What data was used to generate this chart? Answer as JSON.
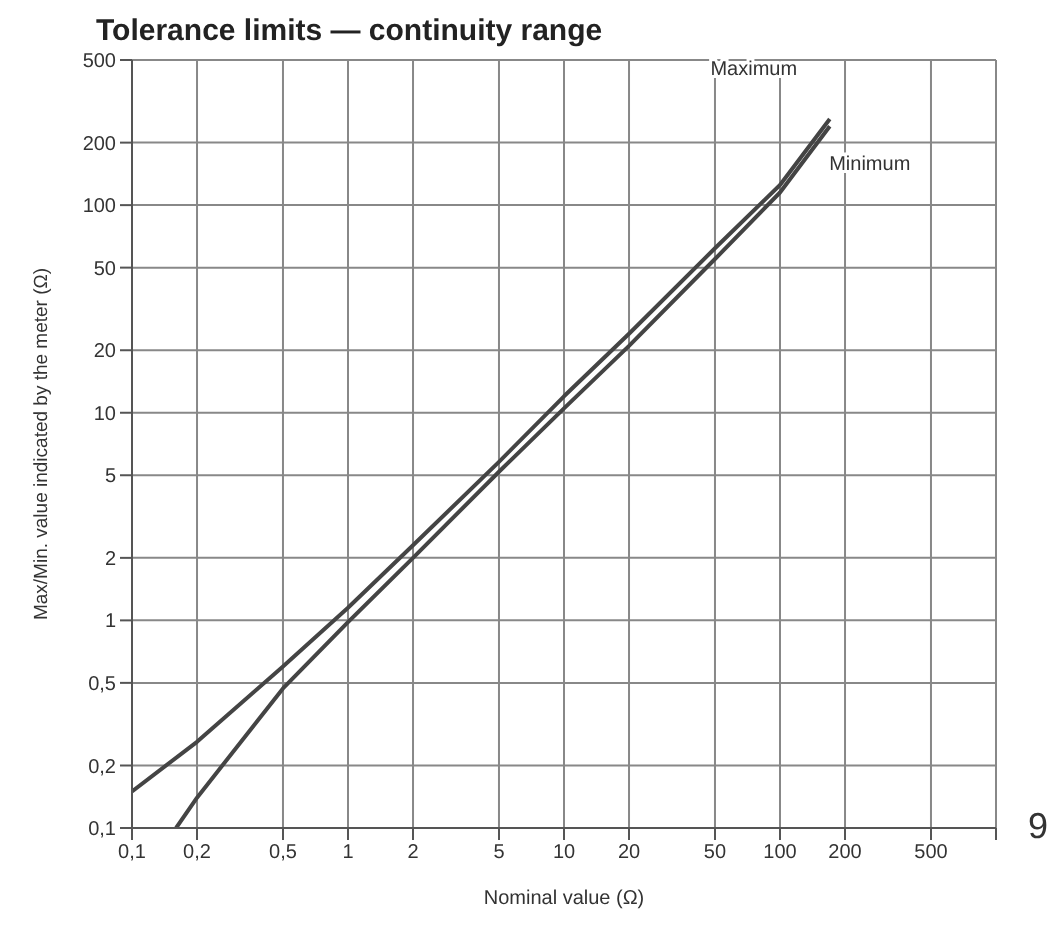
{
  "chart_data": {
    "type": "line",
    "title": "Tolerance limits — continuity range",
    "xlabel": "Nominal value (Ω)",
    "ylabel": "Max/Min. value indicated by the meter (Ω)",
    "log": "xy",
    "grid": true,
    "marker": "none",
    "line_style": "solid",
    "xlim": [
      0.1,
      1000
    ],
    "ylim": [
      0.1,
      500
    ],
    "xticks": [
      {
        "value": 0.1,
        "label": "0,1"
      },
      {
        "value": 0.2,
        "label": "0,2"
      },
      {
        "value": 0.5,
        "label": "0,5"
      },
      1,
      2,
      5,
      10,
      20,
      50,
      100,
      200,
      500,
      {
        "value": 1000,
        "label": null
      }
    ],
    "yticks": [
      {
        "value": 0.1,
        "label": "0,1"
      },
      {
        "value": 0.2,
        "label": "0,2"
      },
      {
        "value": 0.5,
        "label": "0,5"
      },
      1,
      2,
      5,
      10,
      20,
      50,
      100,
      200,
      500
    ],
    "series": [
      {
        "name": "Maximum",
        "color": "#444444",
        "x": [
          0.1,
          0.2,
          0.5,
          1,
          2,
          5,
          10,
          20,
          50,
          100,
          170
        ],
        "values": [
          0.15,
          0.26,
          0.6,
          1.15,
          2.3,
          5.8,
          12,
          24,
          62,
          125,
          260
        ]
      },
      {
        "name": "Minimum",
        "color": "#444444",
        "x": [
          0.16,
          0.2,
          0.5,
          1,
          2,
          5,
          10,
          20,
          50,
          100,
          170
        ],
        "values": [
          0.1,
          0.14,
          0.47,
          0.98,
          2,
          5.2,
          10.5,
          21,
          55,
          115,
          240
        ]
      }
    ],
    "annotations": [
      "9"
    ]
  }
}
